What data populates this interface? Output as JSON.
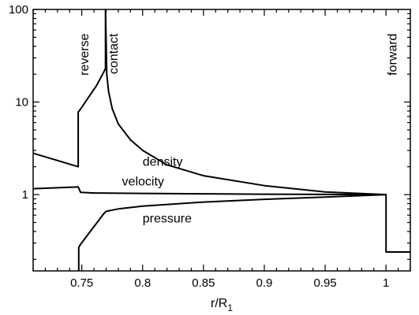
{
  "chart_data": {
    "type": "line",
    "xlabel": "r/R",
    "xlabel_sub": "1",
    "ylabel": "",
    "xlim": [
      0.71,
      1.02
    ],
    "ylim": [
      0.15,
      100
    ],
    "yscale": "log",
    "grid": false,
    "x_ticks": [
      0.75,
      0.8,
      0.85,
      0.9,
      0.95,
      1
    ],
    "x_tick_labels": [
      "0.75",
      "0.8",
      "0.85",
      "0.9",
      "0.95",
      "1"
    ],
    "y_ticks": [
      1,
      10,
      100
    ],
    "y_tick_labels": [
      "1",
      "10",
      "100"
    ],
    "series": [
      {
        "name": "density",
        "x": [
          0.71,
          0.747,
          0.747,
          0.749,
          0.755,
          0.762,
          0.768,
          0.7695,
          0.7695,
          0.7705,
          0.772,
          0.775,
          0.78,
          0.79,
          0.8,
          0.82,
          0.85,
          0.9,
          0.95,
          1.0,
          1.0,
          1.02
        ],
        "y": [
          2.8,
          2.0,
          7.8,
          8.4,
          11.0,
          15.0,
          21.0,
          23.0,
          100,
          20.0,
          13.0,
          8.5,
          5.8,
          3.9,
          3.0,
          2.1,
          1.6,
          1.25,
          1.07,
          1.0,
          0.24,
          0.24
        ]
      },
      {
        "name": "velocity",
        "x": [
          0.71,
          0.747,
          0.749,
          0.76,
          0.8,
          0.85,
          0.9,
          0.95,
          1.0
        ],
        "y": [
          1.16,
          1.21,
          1.06,
          1.04,
          1.03,
          1.02,
          1.01,
          1.005,
          1.0
        ]
      },
      {
        "name": "pressure",
        "x": [
          0.7475,
          0.7475,
          0.749,
          0.755,
          0.762,
          0.768,
          0.77,
          0.78,
          0.8,
          0.85,
          0.9,
          0.95,
          1.0
        ],
        "y": [
          0.15,
          0.27,
          0.29,
          0.37,
          0.49,
          0.62,
          0.66,
          0.7,
          0.75,
          0.83,
          0.89,
          0.94,
          1.0
        ]
      }
    ],
    "annotations": [
      {
        "text": "reverse",
        "x": 0.7485,
        "y": 55,
        "rotation": -90
      },
      {
        "text": "contact",
        "x": 0.7725,
        "y": 55,
        "rotation": -90
      },
      {
        "text": "forward",
        "x": 1.002,
        "y": 55,
        "rotation": -90
      },
      {
        "text": "density",
        "x": 0.8,
        "y": 2.05
      },
      {
        "text": "velocity",
        "x": 0.783,
        "y": 1.25
      },
      {
        "text": "pressure",
        "x": 0.8,
        "y": 0.5
      }
    ]
  }
}
